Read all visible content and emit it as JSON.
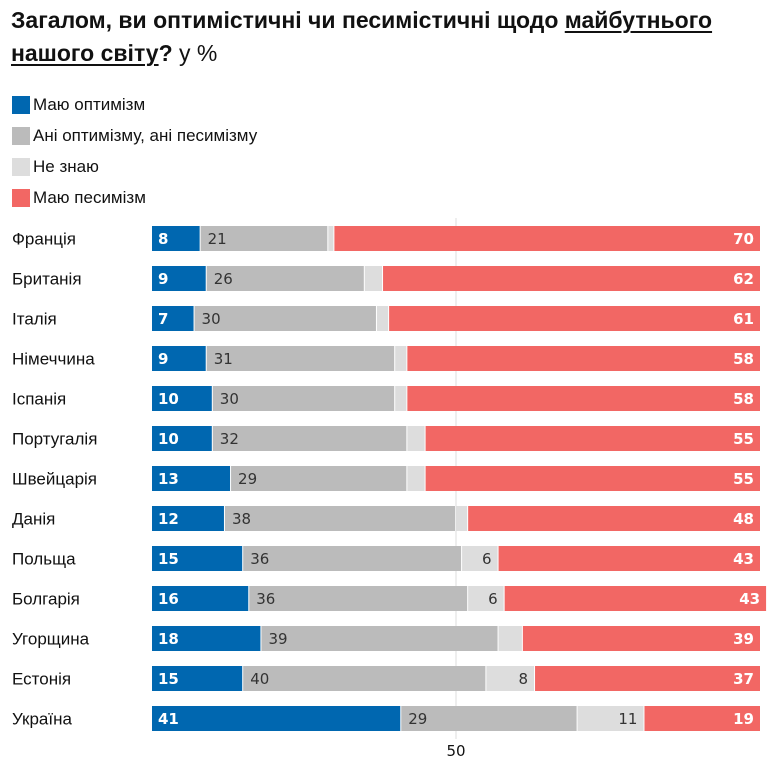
{
  "title": {
    "part1": "Загалом, ви оптимістичні чи песимістичні щодо ",
    "underlined1": "майбутнього нашого світу",
    "question_mark": "?",
    "unit": " у %"
  },
  "legend": [
    {
      "label": "Маю оптимізм",
      "color": "#0067B0"
    },
    {
      "label": "Ані оптимізму, ані песимізму",
      "color": "#BBBBBB"
    },
    {
      "label": "Не знаю",
      "color": "#DDDDDD"
    },
    {
      "label": "Маю песимізм",
      "color": "#F26764"
    }
  ],
  "chart_data": {
    "type": "bar",
    "orientation": "horizontal",
    "stacked": true,
    "title": "Загалом, ви оптимістичні чи песимістичні щодо майбутнього нашого світу? у %",
    "xlabel": "",
    "ylabel": "",
    "xlim": [
      0,
      100
    ],
    "x_ticks": [
      50
    ],
    "gridlines": [
      50
    ],
    "legend_position": "top-left",
    "categories": [
      "Франція",
      "Британія",
      "Італія",
      "Німеччина",
      "Іспанія",
      "Португалія",
      "Швейцарія",
      "Данія",
      "Польща",
      "Болгарія",
      "Угорщина",
      "Естонія",
      "Україна"
    ],
    "series": [
      {
        "name": "Маю оптимізм",
        "color": "#0067B0",
        "label_style": "white",
        "values": [
          8,
          9,
          7,
          9,
          10,
          10,
          13,
          12,
          15,
          16,
          18,
          15,
          41
        ],
        "labels_shown": [
          true,
          true,
          true,
          true,
          true,
          true,
          true,
          true,
          true,
          true,
          true,
          true,
          true
        ]
      },
      {
        "name": "Ані оптимізму, ані песимізму",
        "color": "#BBBBBB",
        "label_style": "dark-left",
        "values": [
          21,
          26,
          30,
          31,
          30,
          32,
          29,
          38,
          36,
          36,
          39,
          40,
          29
        ],
        "labels_shown": [
          true,
          true,
          true,
          true,
          true,
          true,
          true,
          true,
          true,
          true,
          true,
          true,
          true
        ]
      },
      {
        "name": "Не знаю",
        "color": "#DDDDDD",
        "label_style": "dark-right",
        "values": [
          1,
          3,
          2,
          2,
          2,
          3,
          3,
          2,
          6,
          6,
          4,
          8,
          11
        ],
        "labels_shown": [
          false,
          false,
          false,
          false,
          false,
          false,
          false,
          false,
          true,
          true,
          false,
          true,
          true
        ]
      },
      {
        "name": "Маю песимізм",
        "color": "#F26764",
        "label_style": "white-right",
        "values": [
          70,
          62,
          61,
          58,
          58,
          55,
          55,
          48,
          43,
          43,
          39,
          37,
          19
        ],
        "labels_shown": [
          true,
          true,
          true,
          true,
          true,
          true,
          true,
          true,
          true,
          true,
          true,
          true,
          true
        ]
      }
    ]
  }
}
